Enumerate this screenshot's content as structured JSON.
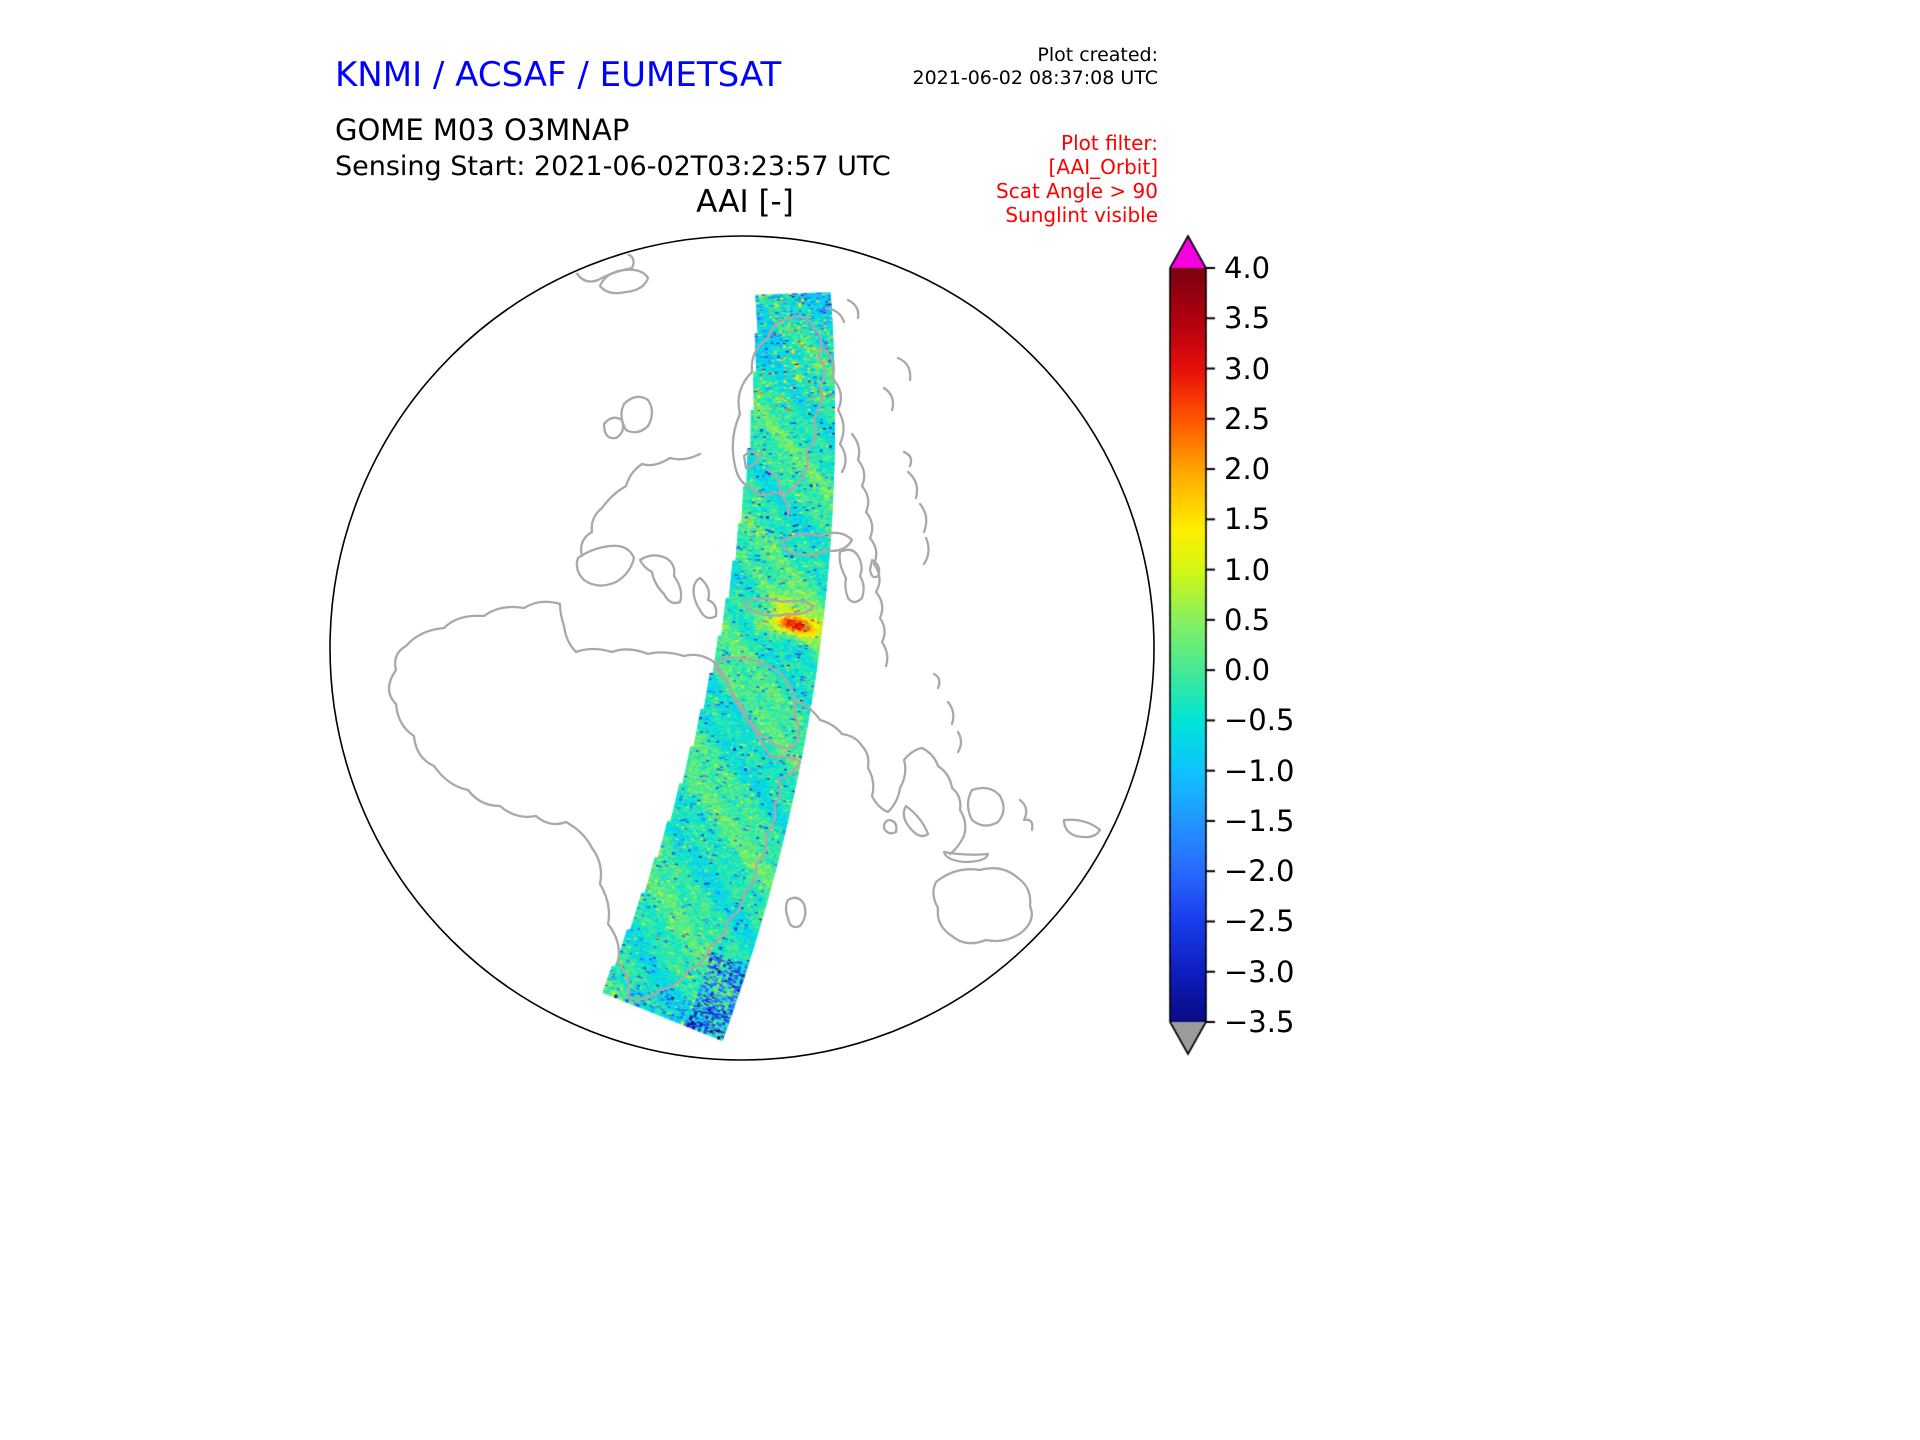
{
  "colors": {
    "title_blue": "#0000ff",
    "filter_red": "#ff0000",
    "coastline_gray": "#a9a9a9",
    "background": "#ffffff"
  },
  "header": {
    "org_title": "KNMI / ACSAF / EUMETSAT",
    "plot_created_label": "Plot created:",
    "plot_created_time": "2021-06-02 08:37:08 UTC"
  },
  "product": {
    "line1": "GOME M03 O3MNAP",
    "line2": "Sensing Start: 2021-06-02T03:23:57 UTC"
  },
  "map_title": "AAI [-]",
  "filter": {
    "lines": [
      "Plot filter:",
      "[AAI_Orbit]",
      "Scat Angle > 90",
      "Sunglint visible"
    ]
  },
  "chart_data": {
    "type": "heatmap",
    "title": "AAI [-]",
    "instrument": "GOME M03 O3MNAP",
    "sensing_start": "2021-06-02T03:23:57 UTC",
    "projection": "orthographic globe centered over Europe / Africa / Asia with gray coastlines",
    "swath": {
      "description": "Single GOME orbit swath of Absorbing Aerosol Index running from the Arctic (top, over Scandinavia) south-southwest across eastern Europe, the Middle East and into the southern Indian Ocean (bottom left)",
      "background_value": -0.2,
      "value_range_typical": [
        -1.5,
        1.0
      ],
      "hotspots": [
        {
          "label": "orange-red high-AAI streak mid-swath near Arabian latitudes",
          "value": 2.5
        },
        {
          "label": "dark-blue speckle at swath start (Arctic) and swath end (bottom-left corner)",
          "value": -2.5
        }
      ]
    },
    "colorbar": {
      "vmin": -3.5,
      "vmax": 4.0,
      "tick_step": 0.5,
      "tick_labels": [
        "4.0",
        "3.5",
        "3.0",
        "2.5",
        "2.0",
        "1.5",
        "1.0",
        "0.5",
        "0.0",
        "−0.5",
        "−1.0",
        "−1.5",
        "−2.0",
        "−2.5",
        "−3.0",
        "−3.5"
      ],
      "extend_over_color": "#f500e1",
      "extend_under_color": "#9c9c9c",
      "stops": [
        {
          "v": -3.5,
          "rgb": [
            10,
            10,
            132
          ]
        },
        {
          "v": -3.0,
          "rgb": [
            13,
            30,
            190
          ]
        },
        {
          "v": -2.5,
          "rgb": [
            25,
            60,
            235
          ]
        },
        {
          "v": -2.0,
          "rgb": [
            40,
            105,
            255
          ]
        },
        {
          "v": -1.5,
          "rgb": [
            35,
            150,
            255
          ]
        },
        {
          "v": -1.0,
          "rgb": [
            15,
            195,
            255
          ]
        },
        {
          "v": -0.5,
          "rgb": [
            0,
            228,
            215
          ]
        },
        {
          "v": 0.0,
          "rgb": [
            70,
            233,
            150
          ]
        },
        {
          "v": 0.5,
          "rgb": [
            135,
            240,
            95
          ]
        },
        {
          "v": 1.0,
          "rgb": [
            210,
            247,
            20
          ]
        },
        {
          "v": 1.4,
          "rgb": [
            255,
            240,
            0
          ]
        },
        {
          "v": 2.0,
          "rgb": [
            255,
            165,
            0
          ]
        },
        {
          "v": 2.5,
          "rgb": [
            255,
            85,
            0
          ]
        },
        {
          "v": 3.0,
          "rgb": [
            230,
            15,
            10
          ]
        },
        {
          "v": 3.5,
          "rgb": [
            175,
            0,
            15
          ]
        },
        {
          "v": 4.0,
          "rgb": [
            122,
            3,
            18
          ]
        }
      ]
    }
  }
}
